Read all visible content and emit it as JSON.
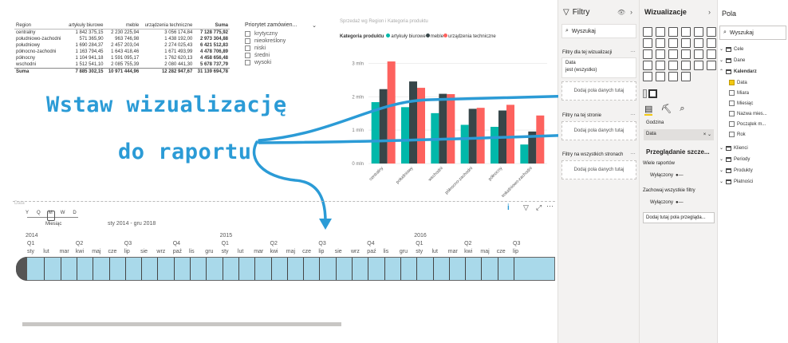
{
  "table": {
    "headers": [
      "Region",
      "artykuły biurowe",
      "meble",
      "urządzenia techniczne",
      "Suma"
    ],
    "rows": [
      [
        "centralny",
        "1 842 375,15",
        "2 230 225,94",
        "3 056 174,84",
        "7 128 775,92"
      ],
      [
        "południowo-zachodni",
        "571 365,90",
        "963 746,98",
        "1 438 192,00",
        "2 973 304,88"
      ],
      [
        "południowy",
        "1 690 284,37",
        "2 457 203,04",
        "2 274 025,43",
        "6 421 512,83"
      ],
      [
        "północno-zachodni",
        "1 163 794,45",
        "1 643 418,46",
        "1 671 493,99",
        "4 478 706,89"
      ],
      [
        "północny",
        "1 104 941,18",
        "1 591 095,17",
        "1 762 620,13",
        "4 458 656,48"
      ],
      [
        "wschodni",
        "1 512 541,10",
        "2 085 755,39",
        "2 080 441,30",
        "5 678 737,79"
      ]
    ],
    "total": [
      "Suma",
      "7 885 302,15",
      "10 971 444,96",
      "12 282 947,67",
      "31 139 694,78"
    ]
  },
  "slicer": {
    "title": "Priorytet zamówien...",
    "options": [
      "krytyczny",
      "nieokreślony",
      "niski",
      "średni",
      "wysoki"
    ]
  },
  "chart_data": {
    "type": "bar",
    "title": "Sprzedaż wg Region i Kategoria produktu",
    "legend_title": "Kategoria produktu",
    "categories": [
      "centralny",
      "południowy",
      "wschodni",
      "północno-zachodni",
      "północny",
      "południowo-zachodni"
    ],
    "series": [
      {
        "name": "artykuły biurowe",
        "color": "#01b8aa",
        "values": [
          1.84,
          1.69,
          1.51,
          1.16,
          1.1,
          0.57
        ]
      },
      {
        "name": "meble",
        "color": "#374649",
        "values": [
          2.23,
          2.46,
          2.09,
          1.64,
          1.59,
          0.96
        ]
      },
      {
        "name": "urządzenia techniczne",
        "color": "#fd625e",
        "values": [
          3.06,
          2.27,
          2.08,
          1.67,
          1.76,
          1.44
        ]
      }
    ],
    "yticks": [
      "0 mln",
      "1 mln",
      "2 mln",
      "3 mln"
    ],
    "ylim": [
      0,
      3.3
    ]
  },
  "overlay": {
    "line1": "Wstaw wizualizację",
    "line2": "do raportu"
  },
  "timeline": {
    "label": "Data",
    "granularity": [
      "Y",
      "Q",
      "M",
      "W",
      "D"
    ],
    "granularity_name": "Miesiąc",
    "range": "sty 2014 - gru 2018",
    "years": [
      {
        "t": "2014"
      },
      {
        "t": "2015"
      },
      {
        "t": "2016"
      }
    ],
    "quarters": [
      "Q1",
      "Q2",
      "Q3",
      "Q4",
      "Q1",
      "Q2",
      "Q3",
      "Q4",
      "Q1",
      "Q2",
      "Q3"
    ],
    "months": [
      "sty",
      "lut",
      "mar",
      "kwi",
      "maj",
      "cze",
      "lip",
      "sie",
      "wrz",
      "paź",
      "lis",
      "gru",
      "sty",
      "lut",
      "mar",
      "kwi",
      "maj",
      "cze",
      "lip",
      "sie",
      "wrz",
      "paź",
      "lis",
      "gru",
      "sty",
      "lut",
      "mar",
      "kwi",
      "maj",
      "cze",
      "lip"
    ]
  },
  "filters": {
    "title": "Filtry",
    "search": "Wyszukaj",
    "sec1": "Filtry dla tej wizualizacji",
    "card_field": "Data",
    "card_value": "jest (wszystko)",
    "add": "Dodaj pola danych tutaj",
    "sec2": "Filtry na tej stronie",
    "sec3": "Filtry na wszystkich stronach"
  },
  "viz": {
    "title": "Wizualizacje",
    "field_label": "Godzina",
    "field_value": "Data",
    "drill_title": "Przeglądanie szcze...",
    "drill1": "Wiele raportów",
    "off1": "Wyłączony",
    "drill2": "Zachowaj wszystkie filtry",
    "off2": "Wyłączony",
    "drill_add": "Dodaj tutaj pola przegląda..."
  },
  "fields": {
    "title": "Pola",
    "search": "Wyszukaj",
    "tables": [
      "Cele",
      "Dane",
      "Kalendarz"
    ],
    "kal": [
      {
        "n": "Data",
        "c": true
      },
      {
        "n": "Miara",
        "c": false
      },
      {
        "n": "Miesiąc",
        "c": false
      },
      {
        "n": "Nazwa mies...",
        "c": false
      },
      {
        "n": "Początek m...",
        "c": false
      },
      {
        "n": "Rok",
        "c": false
      }
    ],
    "tables2": [
      "Klienci",
      "Periody",
      "Produkty",
      "Płatności"
    ]
  }
}
